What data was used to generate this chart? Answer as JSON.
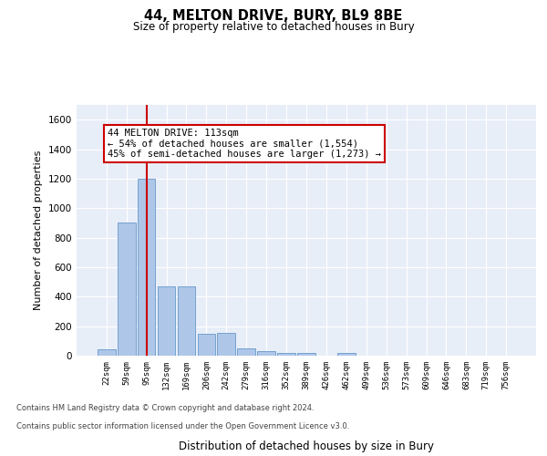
{
  "title": "44, MELTON DRIVE, BURY, BL9 8BE",
  "subtitle": "Size of property relative to detached houses in Bury",
  "xlabel": "Distribution of detached houses by size in Bury",
  "ylabel": "Number of detached properties",
  "bin_labels": [
    "22sqm",
    "59sqm",
    "95sqm",
    "132sqm",
    "169sqm",
    "206sqm",
    "242sqm",
    "279sqm",
    "316sqm",
    "352sqm",
    "389sqm",
    "426sqm",
    "462sqm",
    "499sqm",
    "536sqm",
    "573sqm",
    "609sqm",
    "646sqm",
    "683sqm",
    "719sqm",
    "756sqm"
  ],
  "bar_heights": [
    45,
    900,
    1200,
    470,
    470,
    150,
    155,
    50,
    30,
    20,
    20,
    0,
    20,
    0,
    0,
    0,
    0,
    0,
    0,
    0,
    0
  ],
  "bar_color": "#aec6e8",
  "bar_edge_color": "#6699cc",
  "ylim": [
    0,
    1700
  ],
  "yticks": [
    0,
    200,
    400,
    600,
    800,
    1000,
    1200,
    1400,
    1600
  ],
  "redline_x": 2,
  "annotation_title": "44 MELTON DRIVE: 113sqm",
  "annotation_line1": "← 54% of detached houses are smaller (1,554)",
  "annotation_line2": "45% of semi-detached houses are larger (1,273) →",
  "annotation_box_color": "#ffffff",
  "annotation_box_edge_color": "#cc0000",
  "footer_line1": "Contains HM Land Registry data © Crown copyright and database right 2024.",
  "footer_line2": "Contains public sector information licensed under the Open Government Licence v3.0.",
  "background_color": "#e8eef8",
  "grid_color": "#ffffff",
  "fig_bg_color": "#ffffff"
}
